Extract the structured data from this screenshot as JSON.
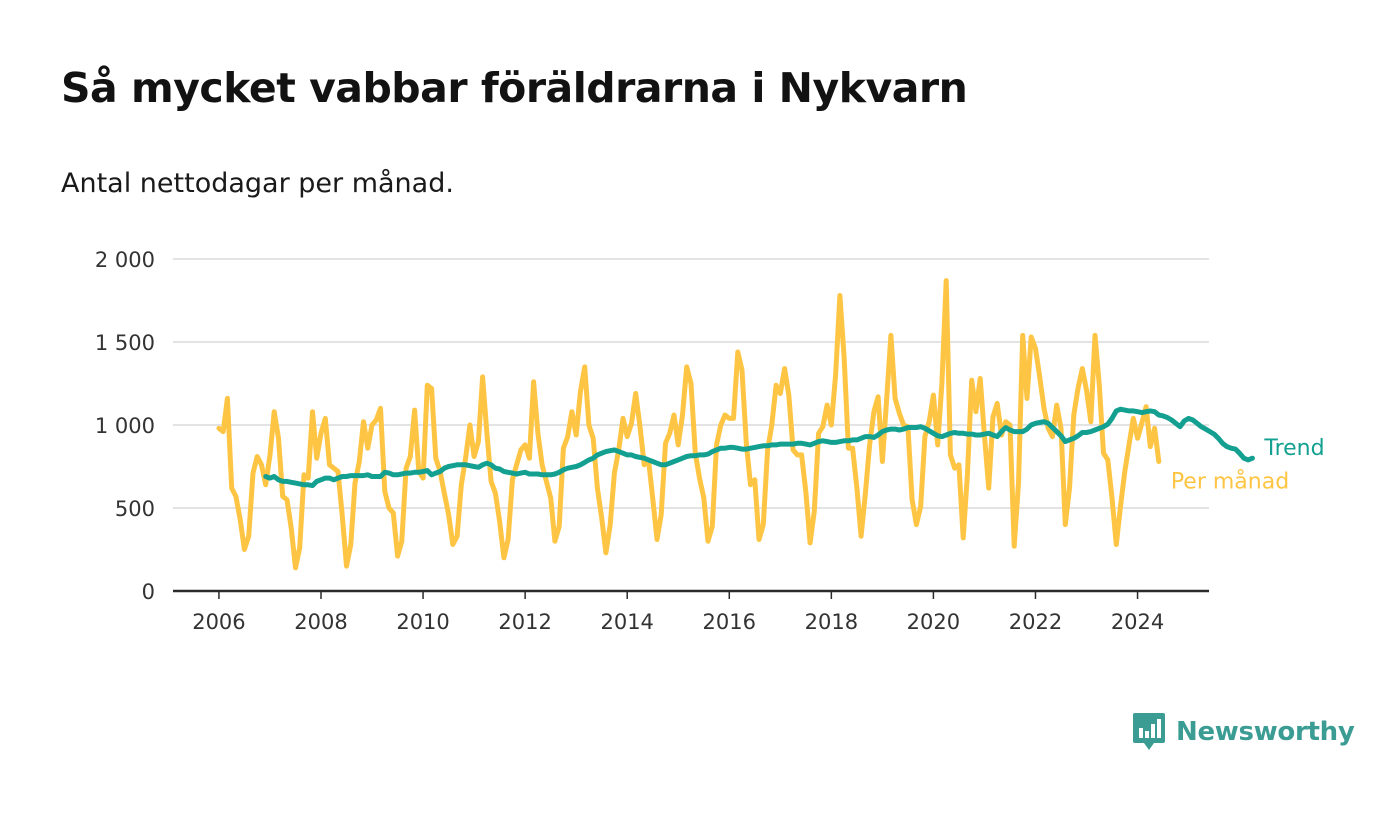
{
  "title": "Så mycket vabbar föräldrarna i Nykvarn",
  "subtitle": "Antal nettodagar per månad.",
  "brand": {
    "name": "Newsworthy",
    "icon": "bar-chart-speech-bubble-icon",
    "color": "#3a9c93"
  },
  "chart_data": {
    "type": "line",
    "title": "Så mycket vabbar föräldrarna i Nykvarn",
    "subtitle": "Antal nettodagar per månad.",
    "xlabel": "",
    "ylabel": "",
    "xlim": [
      2005.1,
      2025.4
    ],
    "ylim": [
      0,
      2000
    ],
    "grid": true,
    "x_ticks": [
      2006,
      2008,
      2010,
      2012,
      2014,
      2016,
      2018,
      2020,
      2022,
      2024
    ],
    "x_tick_labels": [
      "2006",
      "2008",
      "2010",
      "2012",
      "2014",
      "2016",
      "2018",
      "2020",
      "2022",
      "2024"
    ],
    "y_ticks": [
      0,
      500,
      1000,
      1500,
      2000
    ],
    "y_tick_labels": [
      "0",
      "500",
      "1 000",
      "1 500",
      "2 000"
    ],
    "legend_placement": "right-end-of-lines",
    "series": [
      {
        "name": "Per månad",
        "color": "#fdc543",
        "start": "2006-01",
        "frequency": "monthly",
        "values": [
          980,
          960,
          1160,
          620,
          570,
          430,
          250,
          330,
          710,
          810,
          760,
          640,
          820,
          1080,
          920,
          570,
          550,
          380,
          140,
          260,
          700,
          680,
          1080,
          800,
          950,
          1040,
          760,
          740,
          720,
          450,
          150,
          280,
          650,
          780,
          1020,
          860,
          1000,
          1030,
          1100,
          600,
          500,
          470,
          210,
          300,
          740,
          810,
          1090,
          720,
          680,
          1240,
          1220,
          800,
          720,
          590,
          460,
          280,
          330,
          640,
          800,
          1000,
          810,
          900,
          1290,
          950,
          660,
          590,
          420,
          200,
          310,
          670,
          760,
          850,
          880,
          800,
          1260,
          950,
          760,
          660,
          560,
          300,
          390,
          860,
          930,
          1080,
          940,
          1200,
          1350,
          1000,
          920,
          620,
          440,
          230,
          400,
          710,
          850,
          1040,
          930,
          1010,
          1190,
          990,
          760,
          790,
          560,
          310,
          460,
          890,
          950,
          1060,
          880,
          1060,
          1350,
          1250,
          830,
          680,
          560,
          300,
          390,
          880,
          1000,
          1060,
          1040,
          1040,
          1440,
          1330,
          890,
          640,
          670,
          310,
          400,
          850,
          1000,
          1240,
          1190,
          1340,
          1180,
          850,
          820,
          820,
          600,
          290,
          480,
          950,
          990,
          1120,
          1000,
          1300,
          1780,
          1410,
          860,
          860,
          620,
          330,
          590,
          880,
          1080,
          1170,
          780,
          1150,
          1540,
          1160,
          1070,
          1000,
          990,
          550,
          400,
          510,
          930,
          1020,
          1180,
          880,
          1250,
          1870,
          820,
          740,
          760,
          320,
          700,
          1270,
          1080,
          1280,
          940,
          620,
          1050,
          1130,
          940,
          1020,
          1000,
          270,
          650,
          1540,
          1160,
          1530,
          1460,
          1290,
          1100,
          980,
          930,
          1120,
          980,
          400,
          620,
          1060,
          1220,
          1340,
          1210,
          1020,
          1540,
          1240,
          830,
          790,
          560,
          280,
          510,
          720,
          880,
          1040,
          920,
          1010,
          1110,
          870,
          980,
          780
        ]
      },
      {
        "name": "Trend",
        "color": "#13a090",
        "start": "2006-12",
        "frequency": "monthly",
        "values": [
          690,
          680,
          690,
          670,
          660,
          660,
          655,
          650,
          645,
          640,
          640,
          635,
          660,
          670,
          680,
          680,
          670,
          680,
          690,
          690,
          695,
          695,
          695,
          695,
          700,
          690,
          690,
          690,
          715,
          710,
          700,
          700,
          705,
          710,
          710,
          715,
          715,
          720,
          725,
          700,
          710,
          720,
          740,
          750,
          755,
          760,
          760,
          760,
          755,
          750,
          745,
          760,
          770,
          760,
          740,
          735,
          720,
          715,
          710,
          705,
          710,
          715,
          705,
          705,
          705,
          700,
          700,
          700,
          705,
          715,
          730,
          740,
          745,
          750,
          760,
          775,
          790,
          800,
          820,
          830,
          840,
          845,
          850,
          840,
          830,
          820,
          820,
          810,
          805,
          800,
          790,
          780,
          770,
          760,
          760,
          770,
          780,
          790,
          800,
          810,
          815,
          815,
          820,
          820,
          825,
          840,
          850,
          860,
          860,
          865,
          865,
          860,
          855,
          855,
          860,
          865,
          870,
          875,
          875,
          880,
          880,
          885,
          885,
          885,
          885,
          890,
          890,
          885,
          880,
          890,
          900,
          905,
          900,
          895,
          895,
          900,
          905,
          905,
          910,
          910,
          920,
          930,
          930,
          925,
          940,
          960,
          970,
          975,
          975,
          970,
          975,
          985,
          985,
          985,
          990,
          980,
          965,
          950,
          935,
          930,
          940,
          950,
          955,
          950,
          950,
          945,
          945,
          940,
          940,
          945,
          950,
          940,
          930,
          960,
          985,
          970,
          960,
          960,
          960,
          975,
          1000,
          1010,
          1015,
          1020,
          1010,
          985,
          960,
          935,
          900,
          910,
          920,
          935,
          955,
          955,
          960,
          970,
          980,
          990,
          1005,
          1040,
          1085,
          1095,
          1090,
          1085,
          1085,
          1080,
          1075,
          1080,
          1085,
          1080,
          1060,
          1055,
          1045,
          1030,
          1010,
          990,
          1025,
          1040,
          1030,
          1010,
          990,
          975,
          960,
          945,
          920,
          890,
          870,
          860,
          855,
          830,
          800,
          790,
          800
        ]
      }
    ]
  }
}
